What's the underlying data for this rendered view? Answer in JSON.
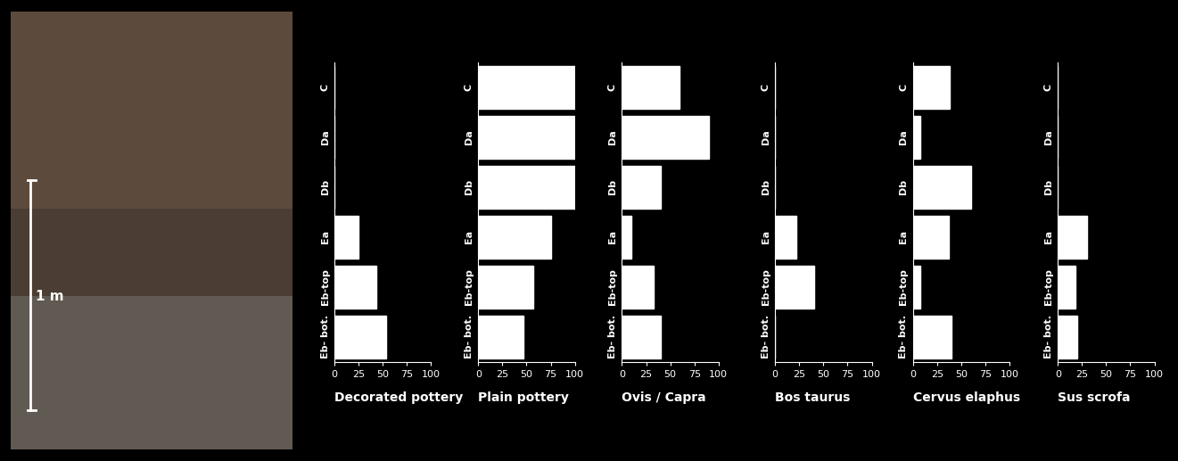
{
  "scale_bar_label": "1 m",
  "chart_data": [
    {
      "type": "bar",
      "orientation": "horizontal",
      "xlabel": "Decorated pottery",
      "categories": [
        "C",
        "Da",
        "Db",
        "Ea",
        "Eb-top",
        "Eb- bot."
      ],
      "values": [
        0,
        0,
        0,
        25,
        43,
        53
      ],
      "color": "#ffffff",
      "xlim": [
        0,
        100
      ],
      "xticks": [
        0,
        25,
        50,
        75,
        100
      ]
    },
    {
      "type": "bar",
      "orientation": "horizontal",
      "xlabel": "Plain pottery",
      "categories": [
        "C",
        "Da",
        "Db",
        "Ea",
        "Eb-top",
        "Eb- bot."
      ],
      "values": [
        100,
        100,
        100,
        75,
        57,
        47
      ],
      "color": "#ffffff",
      "xlim": [
        0,
        100
      ],
      "xticks": [
        0,
        25,
        50,
        75,
        100
      ]
    },
    {
      "type": "bar",
      "orientation": "horizontal",
      "xlabel": "Ovis / Capra",
      "categories": [
        "C",
        "Da",
        "Db",
        "Ea",
        "Eb-top",
        "Eb- bot."
      ],
      "values": [
        60,
        90,
        40,
        10,
        33,
        40
      ],
      "color": "#ffffff",
      "xlim": [
        0,
        100
      ],
      "xticks": [
        0,
        25,
        50,
        75,
        100
      ]
    },
    {
      "type": "bar",
      "orientation": "horizontal",
      "xlabel": "Bos taurus",
      "categories": [
        "C",
        "Da",
        "Db",
        "Ea",
        "Eb-top",
        "Eb- bot."
      ],
      "values": [
        0,
        0,
        0,
        22,
        40,
        0
      ],
      "color": "#ffffff",
      "xlim": [
        0,
        100
      ],
      "xticks": [
        0,
        25,
        50,
        75,
        100
      ]
    },
    {
      "type": "bar",
      "orientation": "horizontal",
      "xlabel": "Cervus elaphus",
      "categories": [
        "C",
        "Da",
        "Db",
        "Ea",
        "Eb-top",
        "Eb- bot."
      ],
      "values": [
        38,
        8,
        60,
        37,
        8,
        40
      ],
      "color": "#ffffff",
      "xlim": [
        0,
        100
      ],
      "xticks": [
        0,
        25,
        50,
        75,
        100
      ]
    },
    {
      "type": "bar",
      "orientation": "horizontal",
      "xlabel": "Sus scrofa",
      "categories": [
        "C",
        "Da",
        "Db",
        "Ea",
        "Eb-top",
        "Eb- bot."
      ],
      "values": [
        0,
        0,
        0,
        30,
        18,
        20
      ],
      "color": "#ffffff",
      "xlim": [
        0,
        100
      ],
      "xticks": [
        0,
        25,
        50,
        75,
        100
      ]
    }
  ]
}
